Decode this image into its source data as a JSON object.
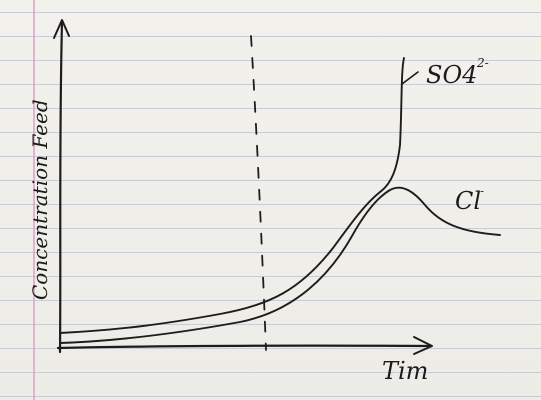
{
  "chart_data": {
    "type": "line",
    "xlabel": "Tim",
    "ylabel": "Concentration Feed",
    "grid": false,
    "series": [
      {
        "name": "SO4 2-"
      },
      {
        "name": "Cl-"
      }
    ],
    "annotations": [
      {
        "type": "vertical-dashed-line"
      }
    ]
  },
  "labels": {
    "so4_main": "SO4",
    "so4_charge": "2-",
    "cl_main": "Cl",
    "cl_charge": "-"
  }
}
